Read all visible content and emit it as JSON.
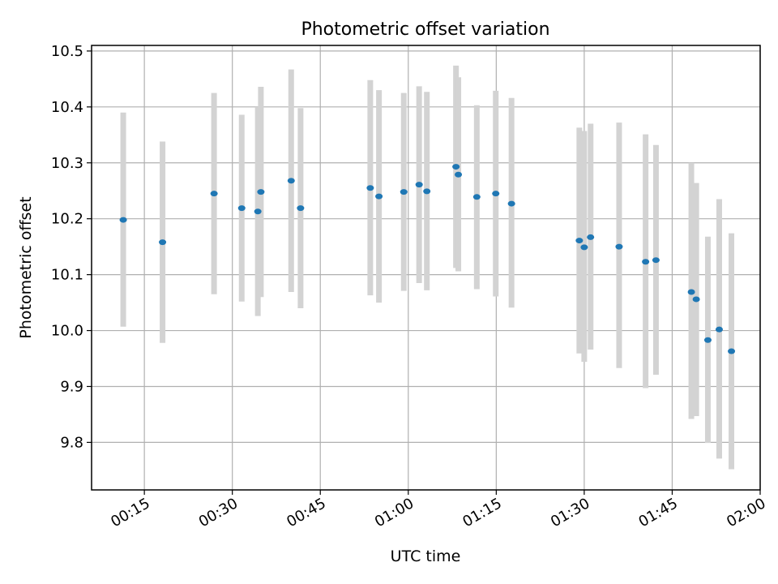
{
  "chart_data": {
    "type": "scatter",
    "title": "Photometric offset variation",
    "xlabel": "UTC time",
    "ylabel": "Photometric offset",
    "xlim": [
      "00:06",
      "02:00"
    ],
    "ylim": [
      9.715,
      10.51
    ],
    "x_ticks": [
      "00:15",
      "00:30",
      "00:45",
      "01:00",
      "01:15",
      "01:30",
      "01:45",
      "02:00"
    ],
    "y_ticks": [
      9.8,
      9.9,
      10.0,
      10.1,
      10.2,
      10.3,
      10.4,
      10.5
    ],
    "y_tick_labels": [
      "9.8",
      "9.9",
      "10.0",
      "10.1",
      "10.2",
      "10.3",
      "10.4",
      "10.5"
    ],
    "grid": true,
    "errorbar_color": "#d3d3d3",
    "marker_color": "#1f77b4",
    "points": [
      {
        "x": "00:11:24",
        "y": 10.198,
        "ylow": 10.007,
        "yhigh": 10.39
      },
      {
        "x": "00:18:06",
        "y": 10.158,
        "ylow": 9.978,
        "yhigh": 10.338
      },
      {
        "x": "00:26:53",
        "y": 10.245,
        "ylow": 10.065,
        "yhigh": 10.425
      },
      {
        "x": "00:31:36",
        "y": 10.219,
        "ylow": 10.052,
        "yhigh": 10.386
      },
      {
        "x": "00:34:21",
        "y": 10.213,
        "ylow": 10.026,
        "yhigh": 10.4
      },
      {
        "x": "00:34:52",
        "y": 10.248,
        "ylow": 10.06,
        "yhigh": 10.436
      },
      {
        "x": "00:40:02",
        "y": 10.268,
        "ylow": 10.069,
        "yhigh": 10.467
      },
      {
        "x": "00:41:38",
        "y": 10.219,
        "ylow": 10.04,
        "yhigh": 10.398
      },
      {
        "x": "00:53:31",
        "y": 10.255,
        "ylow": 10.063,
        "yhigh": 10.448
      },
      {
        "x": "00:55:00",
        "y": 10.24,
        "ylow": 10.05,
        "yhigh": 10.43
      },
      {
        "x": "00:59:14",
        "y": 10.248,
        "ylow": 10.071,
        "yhigh": 10.425
      },
      {
        "x": "01:01:51",
        "y": 10.261,
        "ylow": 10.085,
        "yhigh": 10.437
      },
      {
        "x": "01:03:10",
        "y": 10.249,
        "ylow": 10.072,
        "yhigh": 10.427
      },
      {
        "x": "01:08:08",
        "y": 10.293,
        "ylow": 10.112,
        "yhigh": 10.474
      },
      {
        "x": "01:08:32",
        "y": 10.279,
        "ylow": 10.106,
        "yhigh": 10.453
      },
      {
        "x": "01:11:41",
        "y": 10.239,
        "ylow": 10.074,
        "yhigh": 10.403
      },
      {
        "x": "01:14:55",
        "y": 10.245,
        "ylow": 10.061,
        "yhigh": 10.429
      },
      {
        "x": "01:17:36",
        "y": 10.227,
        "ylow": 10.041,
        "yhigh": 10.416
      },
      {
        "x": "01:29:10",
        "y": 10.161,
        "ylow": 9.959,
        "yhigh": 10.363
      },
      {
        "x": "01:30:00",
        "y": 10.149,
        "ylow": 9.944,
        "yhigh": 10.357
      },
      {
        "x": "01:31:05",
        "y": 10.167,
        "ylow": 9.966,
        "yhigh": 10.37
      },
      {
        "x": "01:35:57",
        "y": 10.15,
        "ylow": 9.933,
        "yhigh": 10.372
      },
      {
        "x": "01:40:28",
        "y": 10.123,
        "ylow": 9.897,
        "yhigh": 10.351
      },
      {
        "x": "01:42:14",
        "y": 10.126,
        "ylow": 9.921,
        "yhigh": 10.332
      },
      {
        "x": "01:48:16",
        "y": 10.069,
        "ylow": 9.842,
        "yhigh": 10.3
      },
      {
        "x": "01:49:06",
        "y": 10.056,
        "ylow": 9.847,
        "yhigh": 10.264
      },
      {
        "x": "01:51:05",
        "y": 9.983,
        "ylow": 9.799,
        "yhigh": 10.168
      },
      {
        "x": "01:53:01",
        "y": 10.002,
        "ylow": 9.771,
        "yhigh": 10.235
      },
      {
        "x": "01:55:06",
        "y": 9.963,
        "ylow": 9.752,
        "yhigh": 10.174
      }
    ]
  }
}
